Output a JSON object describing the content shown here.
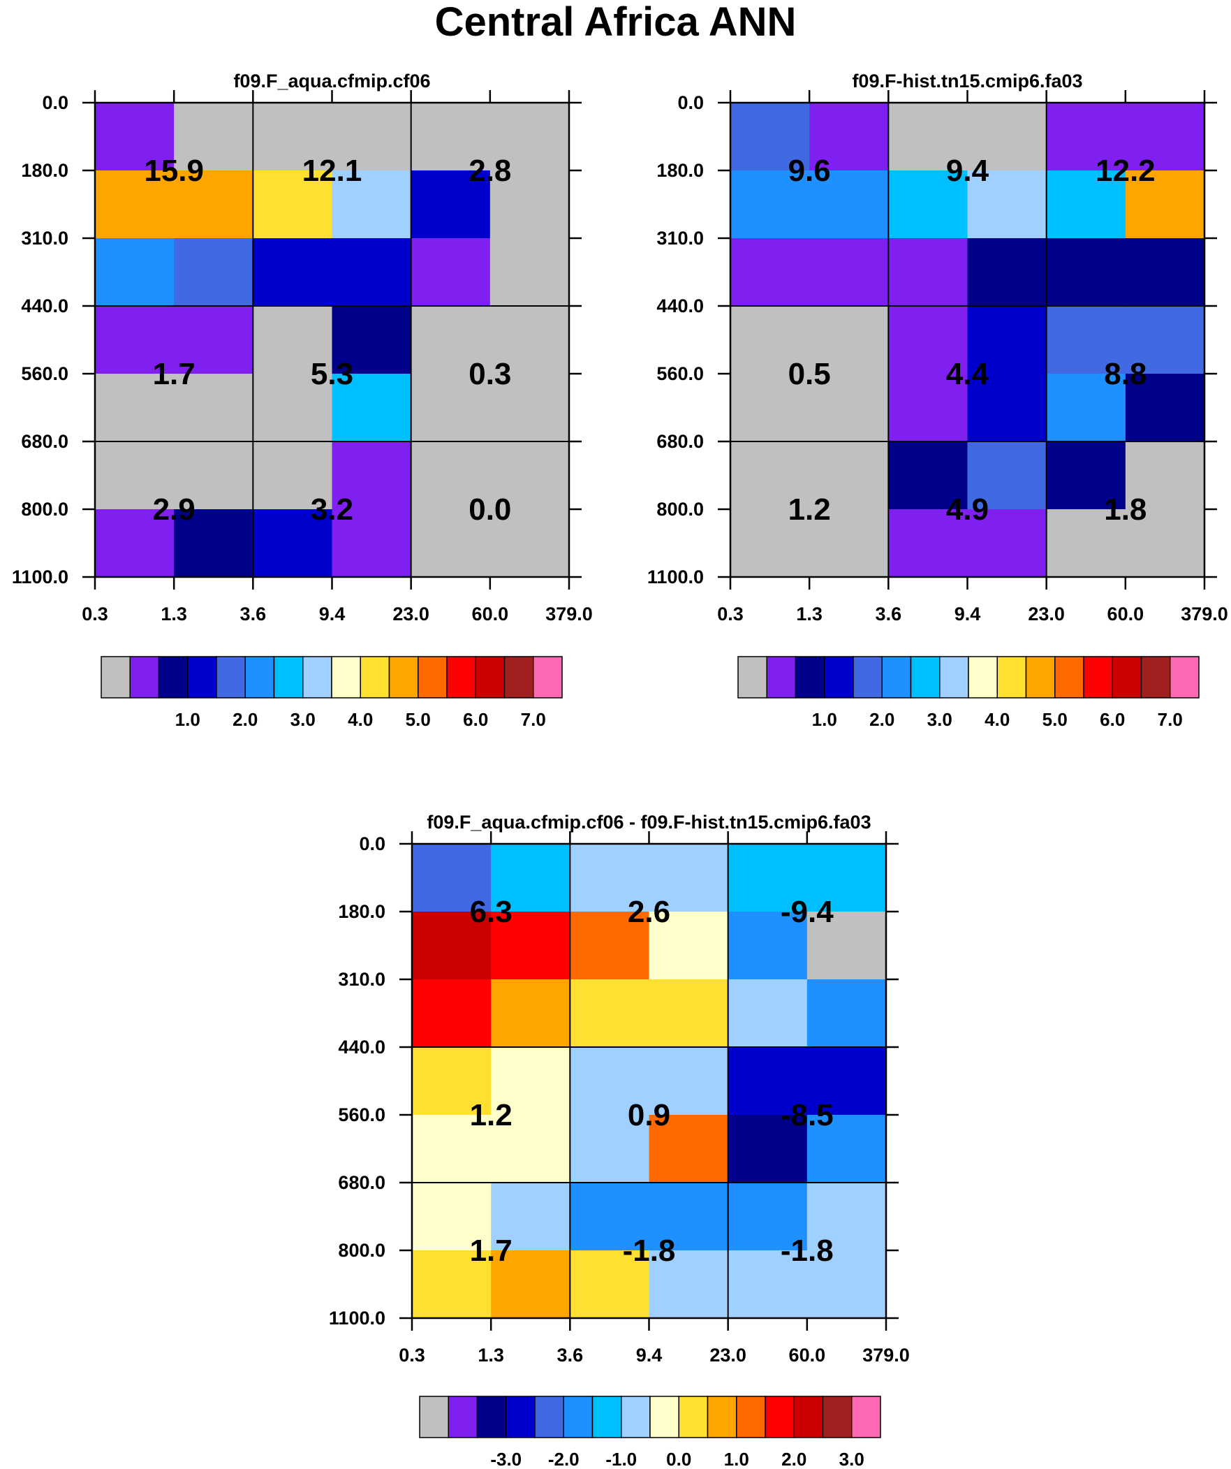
{
  "title": "Central Africa ANN",
  "x_tick_labels": [
    "0.3",
    "1.3",
    "3.6",
    "9.4",
    "23.0",
    "60.0",
    "379.0"
  ],
  "y_tick_labels": [
    "0.0",
    "180.0",
    "310.0",
    "440.0",
    "560.0",
    "680.0",
    "800.0",
    "1100.0"
  ],
  "colors": {
    "c0": "#C0C0C0",
    "c1": "#8020F0",
    "c2": "#00008B",
    "c3": "#0000CD",
    "c4": "#4169E1",
    "c5": "#1E90FF",
    "c6": "#00BFFF",
    "c7": "#A0D0FF",
    "c8": "#FFFFCC",
    "c9": "#FFE030",
    "c10": "#FFA500",
    "c11": "#FF6A00",
    "c12": "#FF0000",
    "c13": "#CC0000",
    "c14": "#A02020",
    "c15": "#FF69B4"
  },
  "chart_data": [
    {
      "type": "heatmap",
      "name": "panel-model",
      "title": "f09.F_aqua.cfmip.cf06",
      "xlabel": "",
      "ylabel": "",
      "x_bins": [
        "0.3",
        "1.3",
        "3.6",
        "9.4",
        "23.0",
        "60.0",
        "379.0"
      ],
      "y_bins": [
        "0.0",
        "180.0",
        "310.0",
        "440.0",
        "560.0",
        "680.0",
        "800.0",
        "1100.0"
      ],
      "cells": [
        [
          "c1",
          "c0",
          "c0",
          "c0",
          "c0",
          "c0"
        ],
        [
          "c10",
          "c10",
          "c9",
          "c7",
          "c3",
          "c0"
        ],
        [
          "c5",
          "c4",
          "c3",
          "c3",
          "c1",
          "c0"
        ],
        [
          "c1",
          "c1",
          "c0",
          "c2",
          "c0",
          "c0"
        ],
        [
          "c0",
          "c0",
          "c0",
          "c6",
          "c0",
          "c0"
        ],
        [
          "c0",
          "c0",
          "c0",
          "c1",
          "c0",
          "c0"
        ],
        [
          "c1",
          "c2",
          "c3",
          "c1",
          "c0",
          "c0"
        ]
      ],
      "group_values": [
        [
          "15.9",
          "12.1",
          "2.8"
        ],
        [
          "1.7",
          "5.3",
          "0.3"
        ],
        [
          "2.9",
          "3.2",
          "0.0"
        ]
      ],
      "colorbar": {
        "boxes": [
          "c0",
          "c1",
          "c2",
          "c3",
          "c4",
          "c5",
          "c6",
          "c7",
          "c8",
          "c9",
          "c10",
          "c11",
          "c12",
          "c13",
          "c14",
          "c15"
        ],
        "labels": [
          "1.0",
          "2.0",
          "3.0",
          "4.0",
          "5.0",
          "6.0",
          "7.0"
        ]
      }
    },
    {
      "type": "heatmap",
      "name": "panel-obs",
      "title": "f09.F-hist.tn15.cmip6.fa03",
      "xlabel": "",
      "ylabel": "",
      "x_bins": [
        "0.3",
        "1.3",
        "3.6",
        "9.4",
        "23.0",
        "60.0",
        "379.0"
      ],
      "y_bins": [
        "0.0",
        "180.0",
        "310.0",
        "440.0",
        "560.0",
        "680.0",
        "800.0",
        "1100.0"
      ],
      "cells": [
        [
          "c4",
          "c1",
          "c0",
          "c0",
          "c1",
          "c1"
        ],
        [
          "c5",
          "c5",
          "c6",
          "c7",
          "c6",
          "c10"
        ],
        [
          "c1",
          "c1",
          "c1",
          "c2",
          "c2",
          "c2"
        ],
        [
          "c0",
          "c0",
          "c1",
          "c3",
          "c4",
          "c4"
        ],
        [
          "c0",
          "c0",
          "c1",
          "c3",
          "c5",
          "c2"
        ],
        [
          "c0",
          "c0",
          "c2",
          "c4",
          "c2",
          "c0"
        ],
        [
          "c0",
          "c0",
          "c1",
          "c1",
          "c0",
          "c0"
        ]
      ],
      "group_values": [
        [
          "9.6",
          "9.4",
          "12.2"
        ],
        [
          "0.5",
          "4.4",
          "8.8"
        ],
        [
          "1.2",
          "4.9",
          "1.8"
        ]
      ],
      "colorbar": {
        "boxes": [
          "c0",
          "c1",
          "c2",
          "c3",
          "c4",
          "c5",
          "c6",
          "c7",
          "c8",
          "c9",
          "c10",
          "c11",
          "c12",
          "c13",
          "c14",
          "c15"
        ],
        "labels": [
          "1.0",
          "2.0",
          "3.0",
          "4.0",
          "5.0",
          "6.0",
          "7.0"
        ]
      }
    },
    {
      "type": "heatmap",
      "name": "panel-diff",
      "title": "f09.F_aqua.cfmip.cf06 - f09.F-hist.tn15.cmip6.fa03",
      "xlabel": "",
      "ylabel": "",
      "x_bins": [
        "0.3",
        "1.3",
        "3.6",
        "9.4",
        "23.0",
        "60.0",
        "379.0"
      ],
      "y_bins": [
        "0.0",
        "180.0",
        "310.0",
        "440.0",
        "560.0",
        "680.0",
        "800.0",
        "1100.0"
      ],
      "cells": [
        [
          "c4",
          "c6",
          "c7",
          "c7",
          "c6",
          "c6"
        ],
        [
          "c13",
          "c12",
          "c11",
          "c8",
          "c5",
          "c0"
        ],
        [
          "c12",
          "c10",
          "c9",
          "c9",
          "c7",
          "c5"
        ],
        [
          "c9",
          "c8",
          "c7",
          "c7",
          "c3",
          "c3"
        ],
        [
          "c8",
          "c8",
          "c7",
          "c11",
          "c2",
          "c5"
        ],
        [
          "c8",
          "c7",
          "c5",
          "c5",
          "c5",
          "c7"
        ],
        [
          "c9",
          "c10",
          "c9",
          "c7",
          "c7",
          "c7"
        ]
      ],
      "group_values": [
        [
          "6.3",
          "2.6",
          "-9.4"
        ],
        [
          "1.2",
          "0.9",
          "-8.5"
        ],
        [
          "1.7",
          "-1.8",
          "-1.8"
        ]
      ],
      "colorbar": {
        "boxes": [
          "c0",
          "c1",
          "c2",
          "c3",
          "c4",
          "c5",
          "c6",
          "c7",
          "c8",
          "c9",
          "c10",
          "c11",
          "c12",
          "c13",
          "c14",
          "c15"
        ],
        "labels": [
          "-3.0",
          "-2.0",
          "-1.0",
          "0.0",
          "1.0",
          "2.0",
          "3.0"
        ]
      }
    }
  ]
}
